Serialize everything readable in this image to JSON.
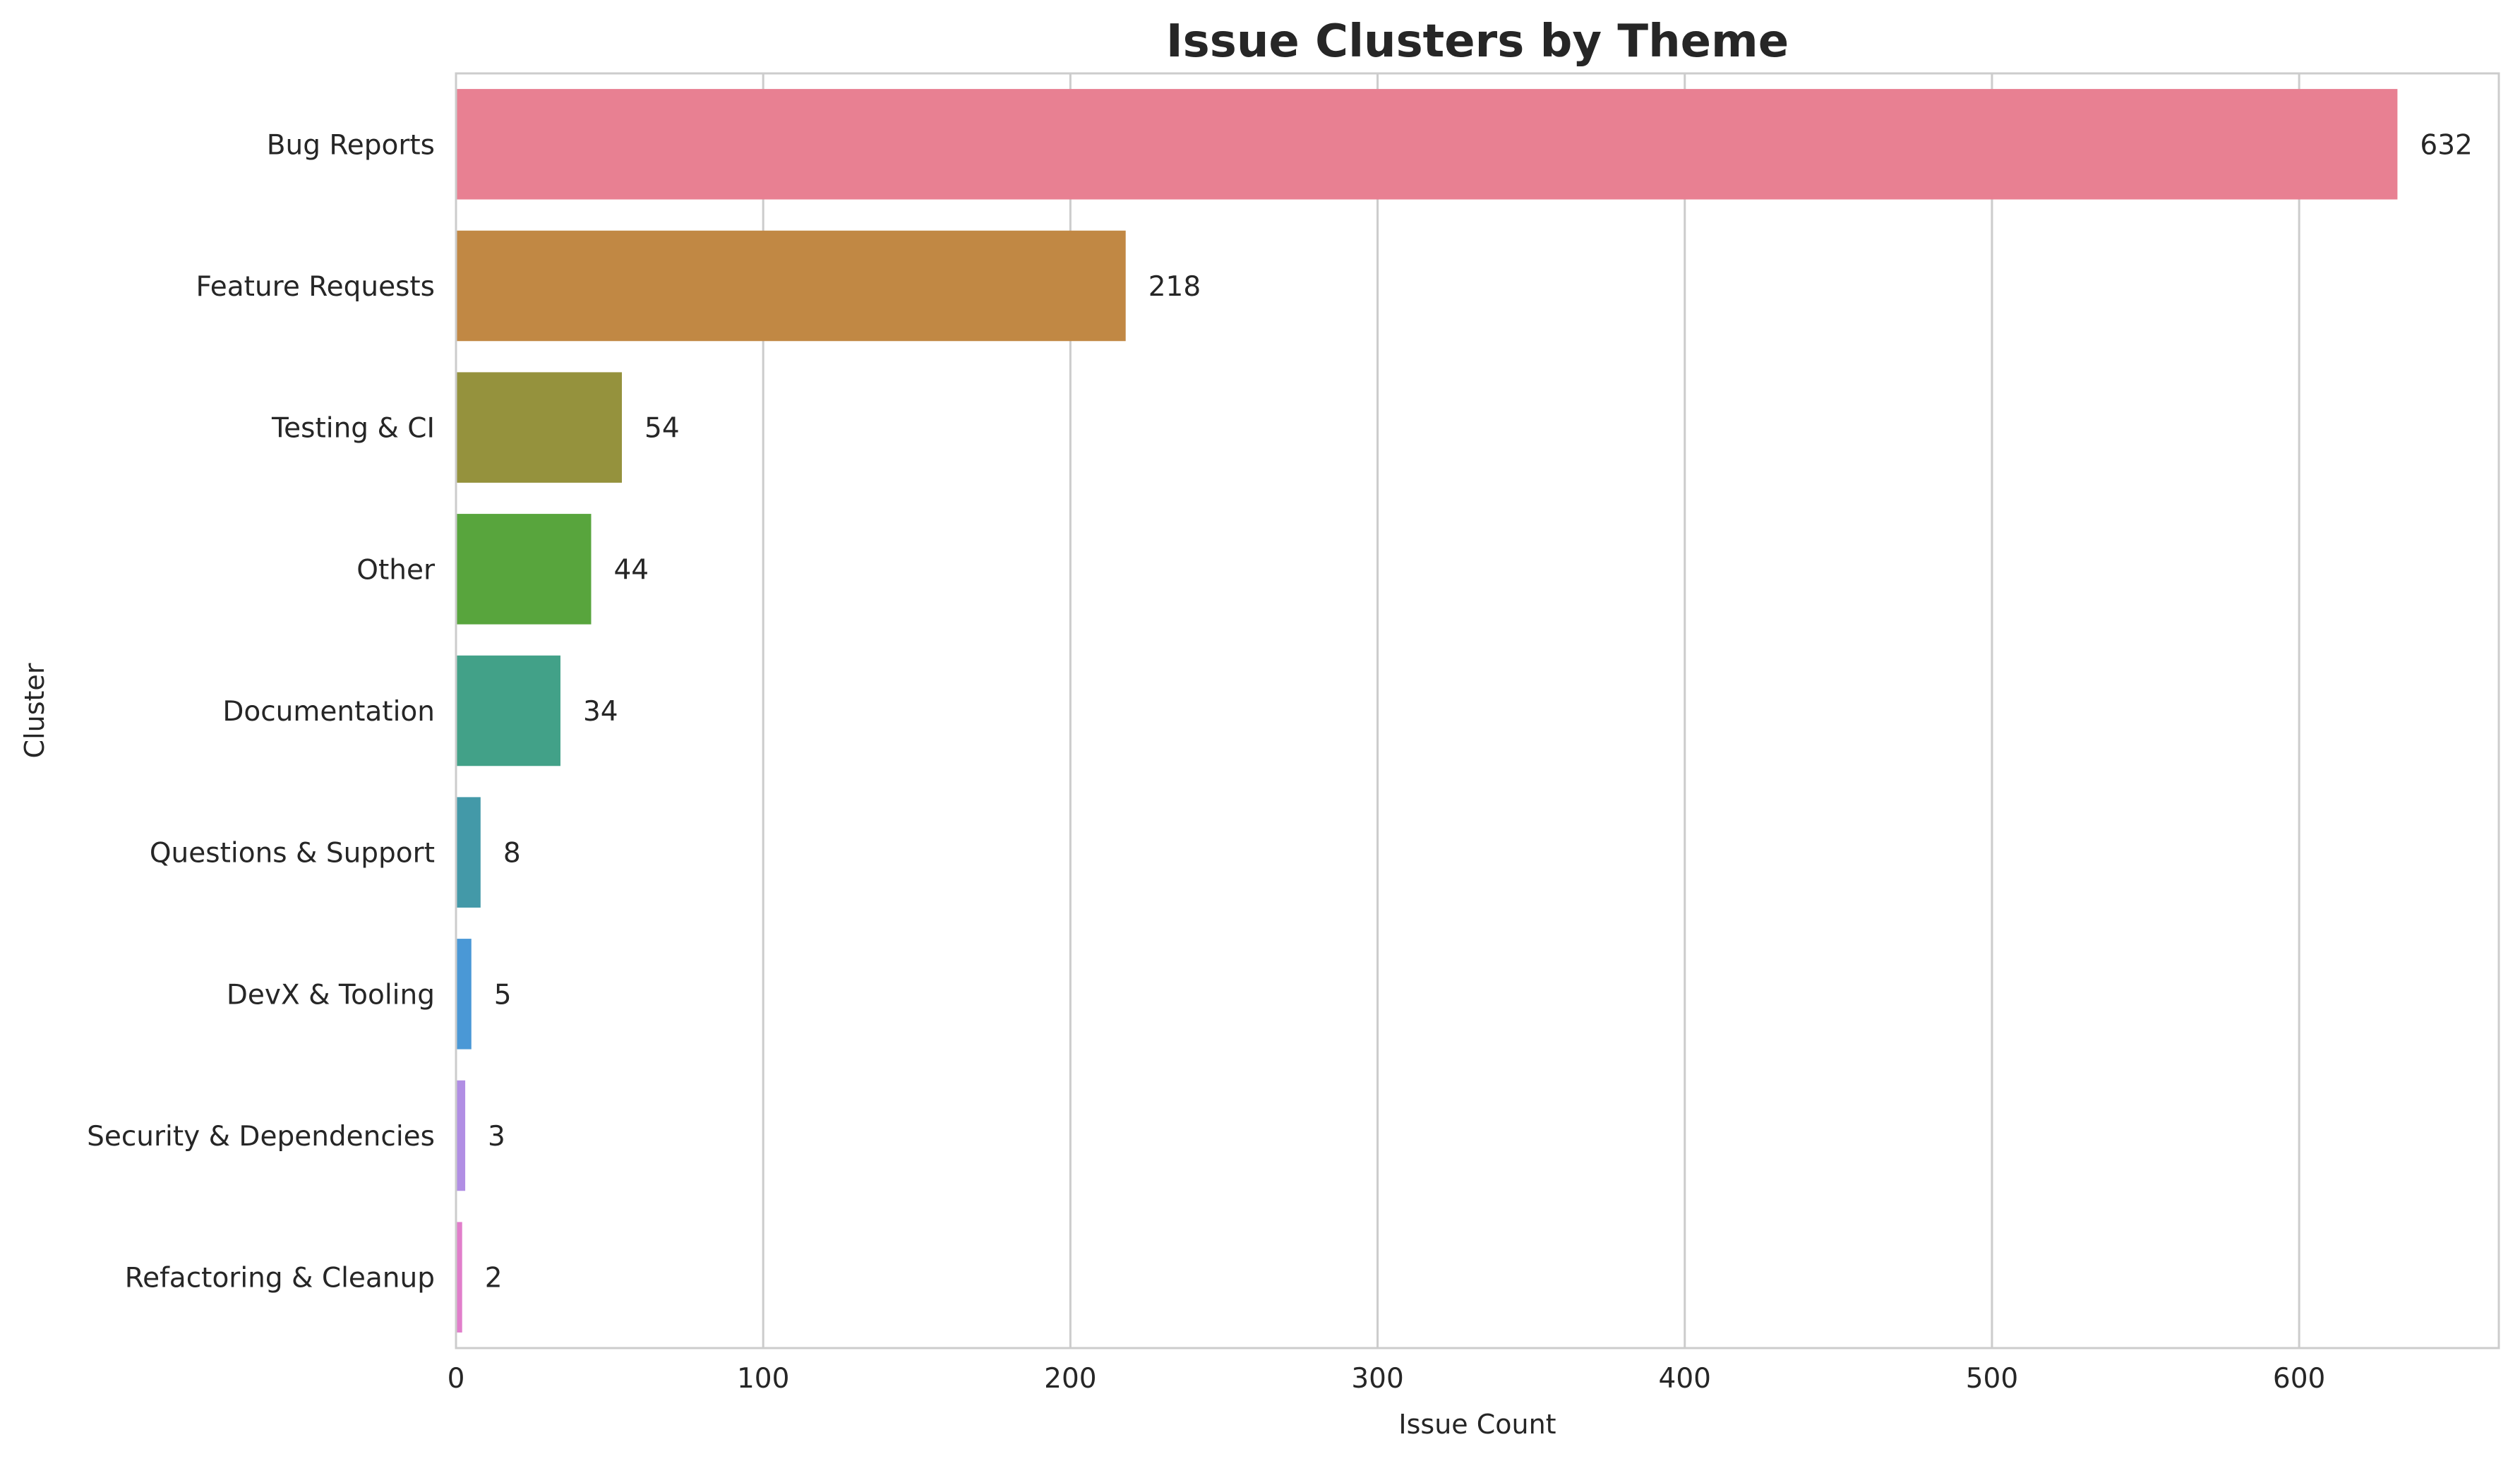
{
  "chart_data": {
    "type": "bar",
    "orientation": "horizontal",
    "title": "Issue Clusters by Theme",
    "xlabel": "Issue Count",
    "ylabel": "Cluster",
    "xlim": [
      0,
      665
    ],
    "xticks": [
      0,
      100,
      200,
      300,
      400,
      500,
      600
    ],
    "grid": "vertical",
    "legend": "none",
    "categories": [
      "Bug Reports",
      "Feature Requests",
      "Testing & CI",
      "Other",
      "Documentation",
      "Questions & Support",
      "DevX & Tooling",
      "Security & Dependencies",
      "Refactoring & Cleanup"
    ],
    "values": [
      632,
      218,
      54,
      44,
      34,
      8,
      5,
      3,
      2
    ],
    "colors": [
      "#e88092",
      "#c18844",
      "#95923d",
      "#58a53d",
      "#42a188",
      "#4399a8",
      "#4a98d6",
      "#b18ee4",
      "#e17ecb"
    ]
  }
}
